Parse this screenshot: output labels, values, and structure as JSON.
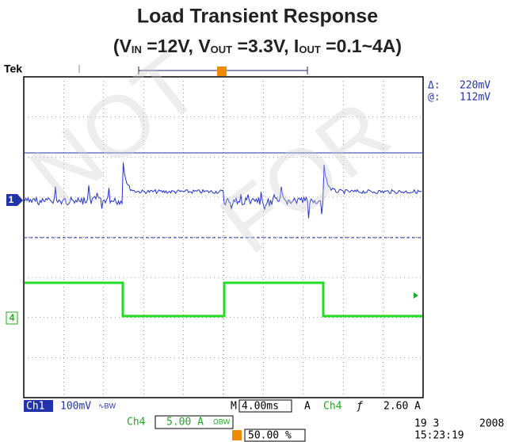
{
  "title": "Load Transient Response",
  "subtitle": [
    "(V",
    "IN",
    " =12V, V",
    "OUT",
    " =3.3V, I",
    "OUT",
    " =0.1~4A)"
  ],
  "watermark": [
    "NOT",
    "FOR"
  ],
  "scope": {
    "brand": "Tek",
    "trigger_marker": "T",
    "cursor": {
      "delta_label": "Δ:",
      "delta": "220mV",
      "at_label": "@:",
      "at": "112mV"
    },
    "channel_markers": [
      "1",
      "4"
    ],
    "status": {
      "ch1": "Ch1",
      "ch1_scale": "100mV",
      "ch1_coupling": "∿BW",
      "time_prefix": "M",
      "timebase": "4.00ms",
      "trigger_mode": "A",
      "trigger_source": "Ch4",
      "trigger_slope": "ƒ",
      "trigger_level": "2.60 A",
      "ch4": "Ch4",
      "ch4_scale": "5.00 A",
      "ch4_coupling": "ΩBW",
      "trigger_position": "50.00 %",
      "date": "19 3",
      "year": "2008",
      "time": "15:23:19"
    }
  }
}
